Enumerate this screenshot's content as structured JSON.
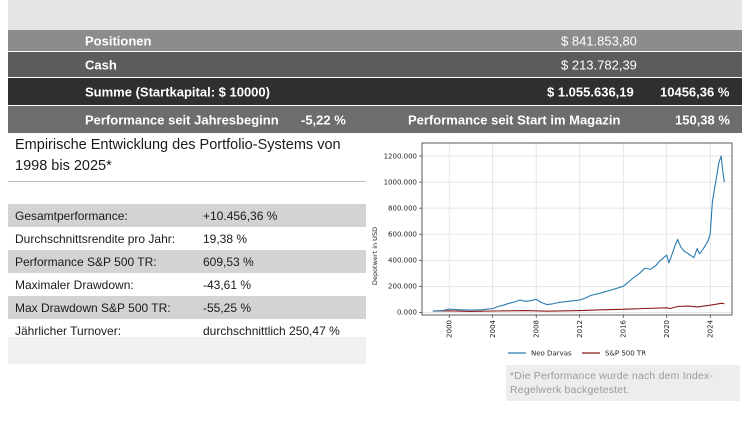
{
  "summary": {
    "positionen_label": "Positionen",
    "positionen_value": "$ 841.853,80",
    "cash_label": "Cash",
    "cash_value": "$ 213.782,39",
    "summe_label": "Summe (Startkapital: $ 10000)",
    "summe_value": "$ 1.055.636,19",
    "summe_pct": "10456,36 %",
    "perf_year_label": "Performance seit Jahresbeginn",
    "perf_year_value": "-5,22 %",
    "perf_start_label": "Performance seit Start im Magazin",
    "perf_start_value": "150,38 %"
  },
  "left": {
    "title": "Empirische Entwicklung des Portfolio-Systems von 1998 bis 2025*",
    "rows": [
      {
        "label": "Gesamtperformance:",
        "value": "+10.456,36 %"
      },
      {
        "label": "Durchschnittsrendite pro Jahr:",
        "value": "19,38 %"
      },
      {
        "label": "Performance S&P 500 TR:",
        "value": "609,53 %"
      },
      {
        "label": "Maximaler Drawdown:",
        "value": "-43,61 %"
      },
      {
        "label": "Max Drawdown S&P 500 TR:",
        "value": "-55,25 %"
      },
      {
        "label": "Jährlicher Turnover:",
        "value": "durchschnittlich 250,47 %"
      }
    ]
  },
  "note": "*Die Performance wurde nach dem Index-Regelwerk backgetestet.",
  "chart_data": {
    "type": "line",
    "ylabel": "Depotwert in USD",
    "xlim": [
      1997.5,
      2026.0
    ],
    "ylim": [
      -20000,
      1300000
    ],
    "xticks": [
      2000,
      2004,
      2008,
      2012,
      2016,
      2020,
      2024
    ],
    "yticks": [
      0,
      200000,
      400000,
      600000,
      800000,
      1000000,
      1200000
    ],
    "ytick_labels": [
      "0.000",
      "200.000",
      "400.000",
      "600.000",
      "800.000",
      "1000.000",
      "1200.000"
    ],
    "grid": true,
    "legend_position": "bottom",
    "colors": {
      "neo": "#2a7bb0",
      "sp": "#8b1a1a"
    },
    "series": [
      {
        "name": "Neo Darvas",
        "x": [
          1998.5,
          1999.0,
          1999.5,
          2000.0,
          2000.5,
          2001.0,
          2002.0,
          2003.0,
          2004.0,
          2004.5,
          2005.0,
          2005.5,
          2006.0,
          2006.5,
          2007.0,
          2007.5,
          2008.0,
          2008.5,
          2009.0,
          2009.5,
          2010.0,
          2011.0,
          2012.0,
          2012.5,
          2013.0,
          2014.0,
          2015.0,
          2016.0,
          2016.5,
          2017.0,
          2017.5,
          2018.0,
          2018.5,
          2019.0,
          2019.3,
          2019.7,
          2020.0,
          2020.2,
          2020.5,
          2020.8,
          2021.0,
          2021.3,
          2021.6,
          2022.0,
          2022.5,
          2022.8,
          2023.0,
          2023.3,
          2023.6,
          2023.8,
          2024.0,
          2024.2,
          2024.5,
          2024.8,
          2025.0,
          2025.2,
          2025.3
        ],
        "y": [
          10000,
          12000,
          15000,
          25000,
          22000,
          20000,
          18000,
          20000,
          30000,
          45000,
          55000,
          70000,
          80000,
          95000,
          85000,
          90000,
          100000,
          75000,
          60000,
          65000,
          75000,
          85000,
          95000,
          110000,
          130000,
          150000,
          175000,
          200000,
          235000,
          270000,
          300000,
          340000,
          330000,
          360000,
          390000,
          420000,
          440000,
          380000,
          450000,
          520000,
          560000,
          500000,
          470000,
          450000,
          420000,
          490000,
          450000,
          480000,
          520000,
          550000,
          600000,
          850000,
          1000000,
          1150000,
          1200000,
          1050000,
          1000000
        ]
      },
      {
        "name": "S&P 500 TR",
        "x": [
          1998.5,
          2000.0,
          2002.0,
          2003.0,
          2004.0,
          2007.0,
          2009.0,
          2012.0,
          2014.0,
          2016.0,
          2018.0,
          2020.0,
          2020.3,
          2021.0,
          2022.0,
          2022.8,
          2023.5,
          2024.0,
          2024.5,
          2025.0,
          2025.2,
          2025.3
        ],
        "y": [
          10000,
          12000,
          8000,
          9000,
          11000,
          14000,
          9000,
          14000,
          20000,
          24000,
          30000,
          35000,
          30000,
          45000,
          48000,
          42000,
          50000,
          55000,
          62000,
          70000,
          68000,
          65000
        ]
      }
    ]
  }
}
